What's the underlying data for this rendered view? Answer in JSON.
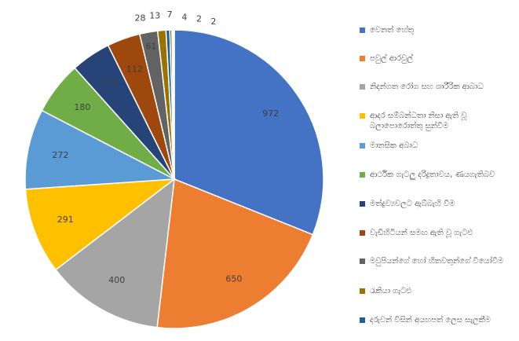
{
  "chart_data": {
    "type": "pie",
    "categories": [
      "වෙනත් හේතු",
      "පවුල් ආරවුල්",
      "නිදන්ගත රෝග සහ ශාරීරික ආබාධ",
      "ආදර සම්බන්ධතා නිසා ඇති වූ බලාපොරොත්තු සුන්වීම",
      "මානසික අබාධ",
      "ආර්ථික ගැටලු දරිද්‍රතාවය, ණයගැතිබව",
      "මත්ද්‍රව්‍යවලට ඇබ්බැහි වීම",
      "වැඩිහිටියන් සමඟ ඇති වූ ගැටළු",
      "මවුපියන්ගේ හෝ හිතවතුන්ගේ වියෝවීම",
      "රැකියා ගැටළු",
      "දරුවන් විසින් අයහපත් ලෙස සැලකීම",
      null,
      null,
      null,
      null
    ],
    "values": [
      972,
      650,
      400,
      291,
      272,
      180,
      135,
      112,
      61,
      28,
      13,
      7,
      4,
      2,
      2
    ],
    "colors": [
      "#4472c4",
      "#ed7d31",
      "#a5a5a5",
      "#ffc000",
      "#5b9bd5",
      "#70ad47",
      "#264478",
      "#9e480e",
      "#636363",
      "#997300",
      "#255e91",
      "#43682b",
      "#698ed0",
      "#f1975a",
      "#b7b7b7"
    ],
    "legend": "right"
  }
}
